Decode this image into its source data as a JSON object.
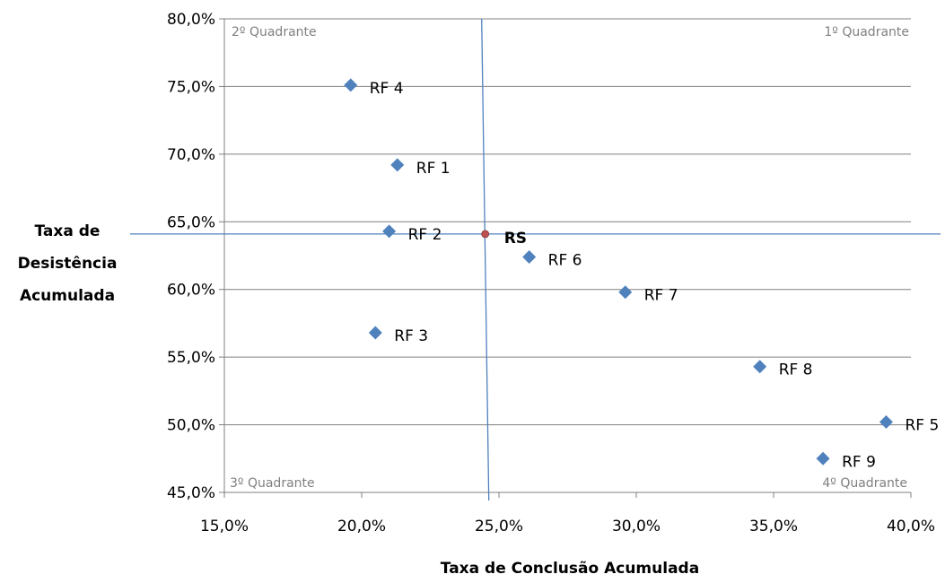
{
  "chart_data": {
    "type": "scatter",
    "xlabel": "Taxa de Conclusão Acumulada",
    "ylabel_lines": [
      "Taxa de",
      "Desistência",
      "Acumulada"
    ],
    "xlim": [
      0.15,
      0.4
    ],
    "ylim": [
      0.45,
      0.8
    ],
    "x_ticks": [
      0.15,
      0.2,
      0.25,
      0.3,
      0.35,
      0.4
    ],
    "x_tick_labels": [
      "15,0%",
      "20,0%",
      "25,0%",
      "30,0%",
      "35,0%",
      "40,0%"
    ],
    "y_ticks": [
      0.45,
      0.5,
      0.55,
      0.6,
      0.65,
      0.7,
      0.75,
      0.8
    ],
    "y_tick_labels": [
      "45,0%",
      "50,0%",
      "55,0%",
      "60,0%",
      "65,0%",
      "70,0%",
      "75,0%",
      "80,0%"
    ],
    "grid": "horizontal",
    "reference_lines": {
      "x": 0.245,
      "y": 0.641
    },
    "quadrant_labels": {
      "top_left": "2º Quadrante",
      "top_right": "1º Quadrante",
      "bottom_left": "3º Quadrante",
      "bottom_right": "4º Quadrante"
    },
    "points": [
      {
        "label": "RF 4",
        "x": 0.196,
        "y": 0.751
      },
      {
        "label": "RF 1",
        "x": 0.213,
        "y": 0.692
      },
      {
        "label": "RF 2",
        "x": 0.21,
        "y": 0.643
      },
      {
        "label": "RS",
        "x": 0.245,
        "y": 0.641,
        "highlight": true
      },
      {
        "label": "RF 6",
        "x": 0.261,
        "y": 0.624
      },
      {
        "label": "RF 7",
        "x": 0.296,
        "y": 0.598
      },
      {
        "label": "RF 3",
        "x": 0.205,
        "y": 0.568
      },
      {
        "label": "RF 8",
        "x": 0.345,
        "y": 0.543
      },
      {
        "label": "RF 5",
        "x": 0.391,
        "y": 0.502
      },
      {
        "label": "RF 9",
        "x": 0.368,
        "y": 0.475
      }
    ],
    "colors": {
      "marker": "#4f81bd",
      "rs_marker": "#c0504d",
      "gridline": "#808080",
      "reference": "#4f81bd"
    }
  }
}
